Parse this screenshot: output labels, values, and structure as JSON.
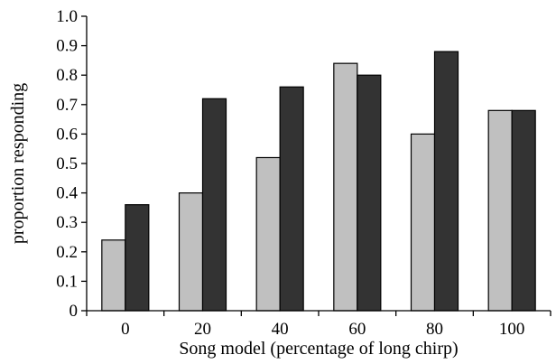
{
  "chart_data": {
    "type": "bar",
    "title": "",
    "xlabel": "Song model (percentage of long chirp)",
    "ylabel": "proportion responding",
    "categories": [
      "0",
      "20",
      "40",
      "60",
      "80",
      "100"
    ],
    "series": [
      {
        "values": [
          0.24,
          0.4,
          0.52,
          0.84,
          0.6,
          0.68
        ],
        "color": "#c0c0c0"
      },
      {
        "values": [
          0.36,
          0.72,
          0.76,
          0.8,
          0.88,
          0.68
        ],
        "color": "#333333"
      }
    ],
    "ylim": [
      0,
      1.0
    ],
    "yticks": [
      "0",
      "0.1",
      "0.2",
      "0.3",
      "0.4",
      "0.5",
      "0.6",
      "0.7",
      "0.8",
      "0.9",
      "1.0"
    ],
    "grid": false,
    "legend": "none"
  }
}
